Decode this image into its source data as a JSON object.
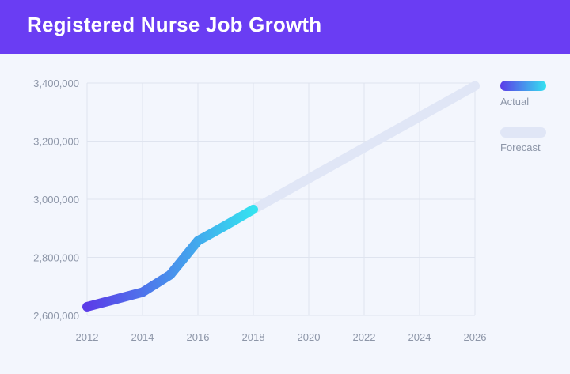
{
  "header": {
    "title": "Registered Nurse Job Growth"
  },
  "colors": {
    "header_bg": "#6a3df3",
    "actual_start": "#5b3ce8",
    "actual_end": "#35e2f0",
    "forecast": "#e0e6f6",
    "grid": "#dfe4ef",
    "tick_text": "#8d96a8",
    "legend_text": "#8d96a8"
  },
  "chart_data": {
    "type": "line",
    "title": "Registered Nurse Job Growth",
    "xlabel": "",
    "ylabel": "",
    "xlim": [
      2012,
      2026
    ],
    "ylim": [
      2600000,
      3400000
    ],
    "x_ticks": [
      "2012",
      "2014",
      "2016",
      "2018",
      "2020",
      "2022",
      "2024",
      "2026"
    ],
    "y_ticks": [
      "2,600,000",
      "2,800,000",
      "3,000,000",
      "3,200,000",
      "3,400,000"
    ],
    "grid": true,
    "legend_position": "right",
    "series": [
      {
        "name": "Actual",
        "x": [
          2012,
          2013,
          2014,
          2015,
          2016,
          2017,
          2018
        ],
        "y": [
          2630000,
          2655000,
          2680000,
          2740000,
          2857000,
          2910000,
          2965000
        ]
      },
      {
        "name": "Forecast",
        "x": [
          2018,
          2026
        ],
        "y": [
          2965000,
          3390000
        ]
      }
    ]
  }
}
